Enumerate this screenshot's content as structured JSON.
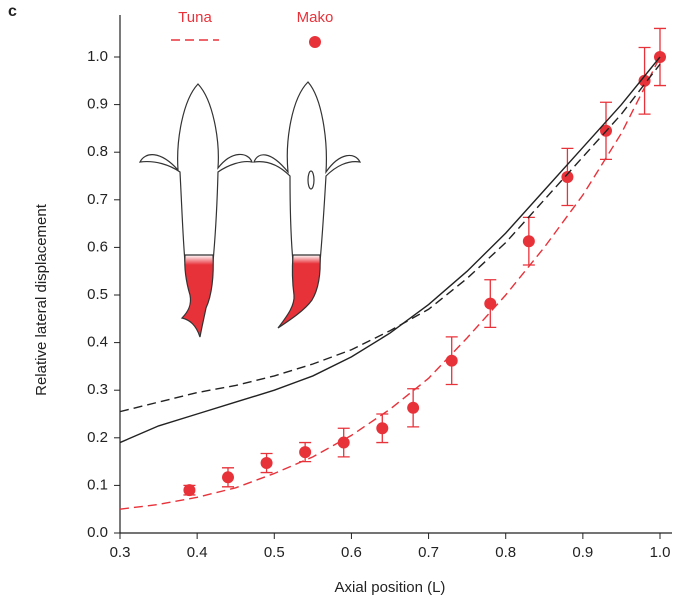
{
  "chart_data": {
    "type": "scatter",
    "panel_label": "c",
    "xlabel": "Axial position (L)",
    "ylabel": "Relative lateral displacement",
    "xlim": [
      0.3,
      1.0
    ],
    "ylim": [
      0,
      1.0
    ],
    "xticks": [
      0.3,
      0.4,
      0.5,
      0.6,
      0.7,
      0.8,
      0.9,
      {
        "value": 1,
        "label": "1.0"
      }
    ],
    "yticks": [
      {
        "value": 0,
        "label": "0.0"
      },
      0.1,
      0.2,
      0.3,
      0.4,
      0.5,
      0.6,
      0.7,
      0.8,
      0.9,
      {
        "value": 1,
        "label": "1.0"
      }
    ],
    "legend": "top",
    "series": [
      {
        "name": "Tuna",
        "color": "#e8323a",
        "style": "dashed",
        "x": [
          0.3,
          0.35,
          0.4,
          0.45,
          0.5,
          0.55,
          0.6,
          0.65,
          0.7,
          0.75,
          0.8,
          0.85,
          0.9,
          0.95,
          1.0
        ],
        "values": [
          0.05,
          0.06,
          0.075,
          0.095,
          0.125,
          0.16,
          0.205,
          0.26,
          0.325,
          0.41,
          0.5,
          0.6,
          0.71,
          0.84,
          1.0
        ]
      },
      {
        "name": "Mako",
        "color": "#e8323a",
        "style": "points",
        "x": [
          0.39,
          0.44,
          0.49,
          0.54,
          0.59,
          0.64,
          0.68,
          0.73,
          0.78,
          0.83,
          0.88,
          0.93,
          0.98,
          1.0
        ],
        "values": [
          0.09,
          0.117,
          0.147,
          0.17,
          0.19,
          0.22,
          0.263,
          0.362,
          0.482,
          0.613,
          0.748,
          0.845,
          0.95,
          1.0
        ],
        "errors": [
          0.01,
          0.02,
          0.02,
          0.02,
          0.03,
          0.03,
          0.04,
          0.05,
          0.05,
          0.05,
          0.06,
          0.06,
          0.07,
          0.06
        ]
      },
      {
        "color": "#222222",
        "style": "solid",
        "x": [
          0.3,
          0.35,
          0.4,
          0.45,
          0.5,
          0.55,
          0.6,
          0.65,
          0.7,
          0.75,
          0.8,
          0.85,
          0.9,
          0.95,
          1.0
        ],
        "values": [
          0.19,
          0.225,
          0.25,
          0.275,
          0.3,
          0.33,
          0.37,
          0.42,
          0.48,
          0.55,
          0.63,
          0.72,
          0.81,
          0.9,
          1.0
        ]
      },
      {
        "color": "#222222",
        "style": "dashed",
        "x": [
          0.3,
          0.35,
          0.4,
          0.45,
          0.5,
          0.55,
          0.6,
          0.65,
          0.7,
          0.75,
          0.8,
          0.85,
          0.9,
          0.95,
          1.0
        ],
        "values": [
          0.255,
          0.275,
          0.295,
          0.31,
          0.33,
          0.355,
          0.385,
          0.425,
          0.47,
          0.535,
          0.61,
          0.7,
          0.79,
          0.88,
          0.985
        ]
      }
    ]
  }
}
